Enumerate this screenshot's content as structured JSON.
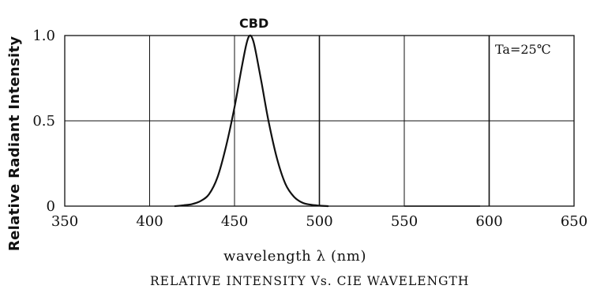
{
  "chart_data": {
    "type": "line",
    "title": "",
    "subtitle": "RELATIVE INTENSITY Vs. CIE WAVELENGTH",
    "xlabel": "wavelength λ (nm)",
    "ylabel": "Relative Radiant Intensity",
    "xlim": [
      350,
      650
    ],
    "ylim": [
      0,
      1.0
    ],
    "x_ticks": [
      "350",
      "400",
      "450",
      "500",
      "550",
      "600",
      "650"
    ],
    "y_ticks": [
      "1.0",
      "0.5",
      "0"
    ],
    "grid": true,
    "annotations": [
      "CBD",
      "Ta=25℃"
    ],
    "series": [
      {
        "name": "CBD",
        "x": [
          415,
          420,
          425,
          430,
          435,
          440,
          445,
          450,
          454,
          457,
          459,
          461,
          463,
          466,
          470,
          475,
          480,
          485,
          490,
          495,
          500,
          505
        ],
        "y": [
          0.0,
          0.005,
          0.012,
          0.03,
          0.07,
          0.17,
          0.35,
          0.58,
          0.8,
          0.95,
          1.0,
          0.97,
          0.88,
          0.72,
          0.5,
          0.28,
          0.13,
          0.055,
          0.02,
          0.008,
          0.003,
          0.0
        ]
      }
    ],
    "line_color": "#111111"
  }
}
